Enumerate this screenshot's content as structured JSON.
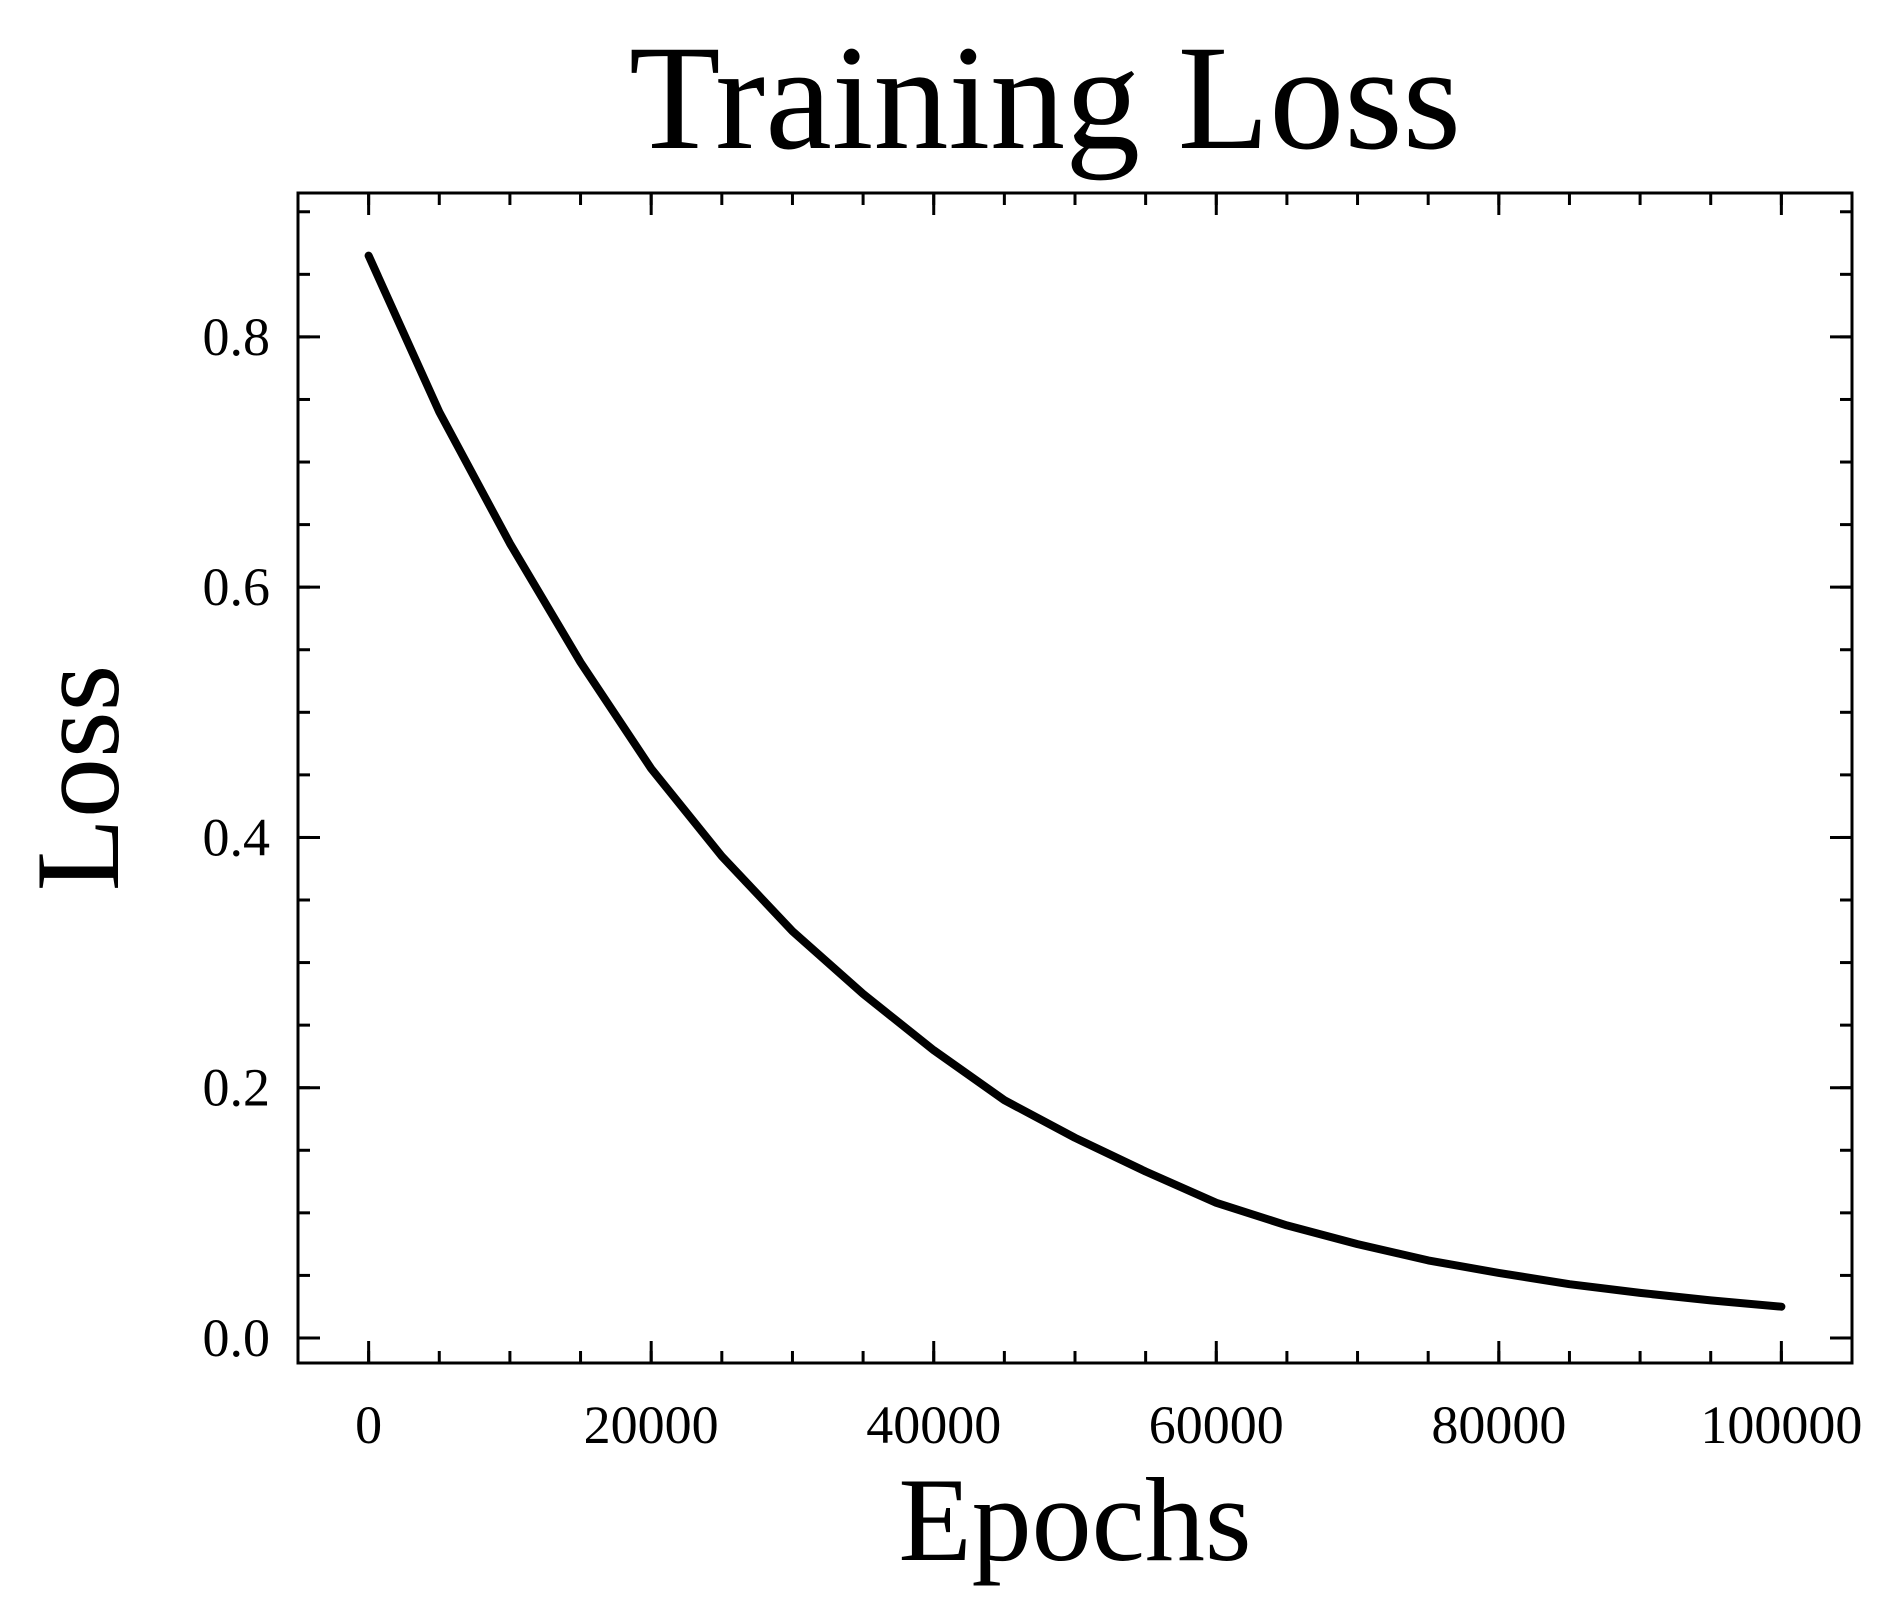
{
  "chart_data": {
    "type": "line",
    "title": "Training Loss",
    "xlabel": "Epochs",
    "ylabel": "Loss",
    "xlim": [
      -5000,
      105000
    ],
    "ylim": [
      -0.02,
      0.915
    ],
    "x_ticks": [
      0,
      20000,
      40000,
      60000,
      80000,
      100000
    ],
    "x_tick_labels": [
      "0",
      "20000",
      "40000",
      "60000",
      "80000",
      "100000"
    ],
    "x_minor_step": 5000,
    "y_ticks": [
      0.0,
      0.2,
      0.4,
      0.6,
      0.8
    ],
    "y_tick_labels": [
      "0.0",
      "0.2",
      "0.4",
      "0.6",
      "0.8"
    ],
    "y_minor_step": 0.05,
    "grid": false,
    "line_color": "#000000",
    "series": [
      {
        "x": [
          0,
          5000,
          10000,
          15000,
          20000,
          25000,
          30000,
          35000,
          40000,
          45000,
          50000,
          55000,
          60000,
          65000,
          70000,
          75000,
          80000,
          85000,
          90000,
          95000,
          100000
        ],
        "values": [
          0.865,
          0.74,
          0.635,
          0.54,
          0.455,
          0.385,
          0.325,
          0.275,
          0.23,
          0.19,
          0.16,
          0.133,
          0.108,
          0.09,
          0.075,
          0.062,
          0.052,
          0.043,
          0.036,
          0.03,
          0.025
        ]
      }
    ]
  }
}
